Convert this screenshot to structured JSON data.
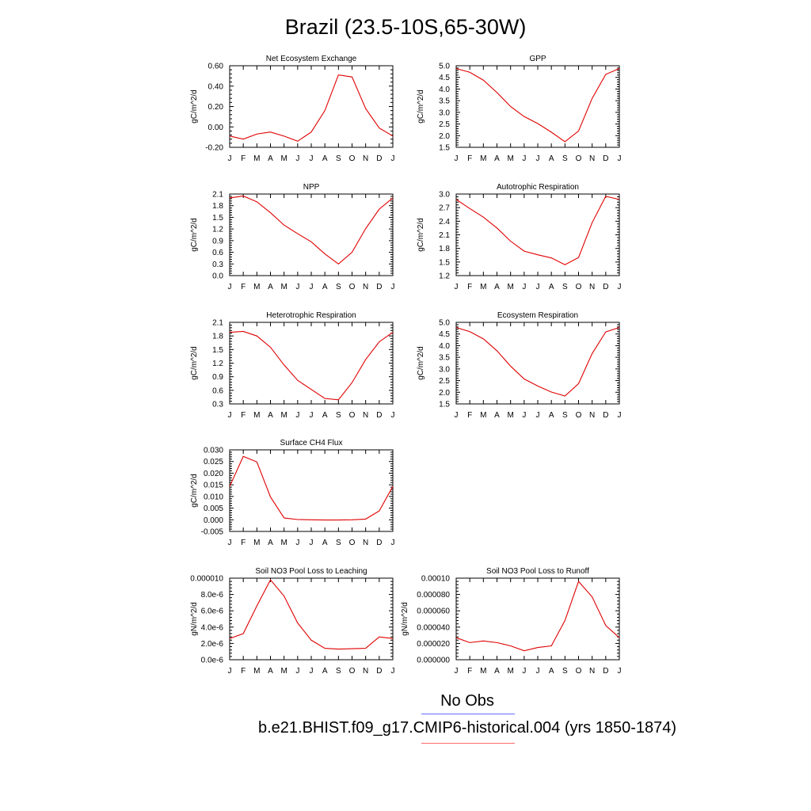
{
  "title": "Brazil (23.5-10S,65-30W)",
  "legend": {
    "obs_label": "No Obs",
    "obs_color": "#6a6aff",
    "model_label": "b.e21.BHIST.f09_g17.CMIP6-historical.004 (yrs 1850-1874)",
    "model_color": "#ff6a6a"
  },
  "colors": {
    "line": "#e00000",
    "axis": "#000000"
  },
  "chart_data": [
    {
      "type": "line",
      "title": "Net Ecosystem Exchange",
      "ylabel": "gC/m^2/d",
      "xticklabels": [
        "J",
        "F",
        "M",
        "A",
        "M",
        "J",
        "J",
        "A",
        "S",
        "O",
        "N",
        "D",
        "J"
      ],
      "ylim": [
        -0.2,
        0.6
      ],
      "yticks": [
        -0.2,
        0.0,
        0.2,
        0.4,
        0.6
      ],
      "yticklabels": [
        "-0.20",
        "0.00",
        "0.20",
        "0.40",
        "0.60"
      ],
      "series": [
        {
          "values": [
            -0.09,
            -0.12,
            -0.07,
            -0.05,
            -0.09,
            -0.14,
            -0.05,
            0.16,
            0.51,
            0.49,
            0.18,
            -0.01,
            -0.09
          ]
        }
      ]
    },
    {
      "type": "line",
      "title": "GPP",
      "ylabel": "gC/m^2/d",
      "xticklabels": [
        "J",
        "F",
        "M",
        "A",
        "M",
        "J",
        "J",
        "A",
        "S",
        "O",
        "N",
        "D",
        "J"
      ],
      "ylim": [
        1.5,
        5.0
      ],
      "yticks": [
        1.5,
        2.0,
        2.5,
        3.0,
        3.5,
        4.0,
        4.5,
        5.0
      ],
      "yticklabels": [
        "1.5",
        "2.0",
        "2.5",
        "3.0",
        "3.5",
        "4.0",
        "4.5",
        "5.0"
      ],
      "series": [
        {
          "values": [
            4.88,
            4.72,
            4.38,
            3.85,
            3.25,
            2.82,
            2.52,
            2.15,
            1.74,
            2.2,
            3.6,
            4.63,
            4.88
          ]
        }
      ]
    },
    {
      "type": "line",
      "title": "NPP",
      "ylabel": "gC/m^2/d",
      "xticklabels": [
        "J",
        "F",
        "M",
        "A",
        "M",
        "J",
        "J",
        "A",
        "S",
        "O",
        "N",
        "D",
        "J"
      ],
      "ylim": [
        0.0,
        2.1
      ],
      "yticks": [
        0.0,
        0.3,
        0.6,
        0.9,
        1.2,
        1.5,
        1.8,
        2.1
      ],
      "yticklabels": [
        "0.0",
        "0.3",
        "0.6",
        "0.9",
        "1.2",
        "1.5",
        "1.8",
        "2.1"
      ],
      "series": [
        {
          "values": [
            2.0,
            2.05,
            1.9,
            1.62,
            1.3,
            1.08,
            0.87,
            0.56,
            0.3,
            0.6,
            1.21,
            1.71,
            2.0
          ]
        }
      ]
    },
    {
      "type": "line",
      "title": "Autotrophic Respiration",
      "ylabel": "gC/m^2/d",
      "xticklabels": [
        "J",
        "F",
        "M",
        "A",
        "M",
        "J",
        "J",
        "A",
        "S",
        "O",
        "N",
        "D",
        "J"
      ],
      "ylim": [
        1.2,
        3.0
      ],
      "yticks": [
        1.2,
        1.5,
        1.8,
        2.1,
        2.4,
        2.7,
        3.0
      ],
      "yticklabels": [
        "1.2",
        "1.5",
        "1.8",
        "2.1",
        "2.4",
        "2.7",
        "3.0"
      ],
      "series": [
        {
          "values": [
            2.88,
            2.68,
            2.49,
            2.25,
            1.96,
            1.74,
            1.66,
            1.59,
            1.44,
            1.6,
            2.37,
            2.95,
            2.88
          ]
        }
      ]
    },
    {
      "type": "line",
      "title": "Heterotrophic Respiration",
      "ylabel": "gC/m^2/d",
      "xticklabels": [
        "J",
        "F",
        "M",
        "A",
        "M",
        "J",
        "J",
        "A",
        "S",
        "O",
        "N",
        "D",
        "J"
      ],
      "ylim": [
        0.3,
        2.1
      ],
      "yticks": [
        0.3,
        0.6,
        0.9,
        1.2,
        1.5,
        1.8,
        2.1
      ],
      "yticklabels": [
        "0.3",
        "0.6",
        "0.9",
        "1.2",
        "1.5",
        "1.8",
        "2.1"
      ],
      "series": [
        {
          "values": [
            1.88,
            1.9,
            1.8,
            1.55,
            1.16,
            0.82,
            0.62,
            0.42,
            0.39,
            0.77,
            1.28,
            1.67,
            1.88
          ]
        }
      ]
    },
    {
      "type": "line",
      "title": "Ecosystem Respiration",
      "ylabel": "gC/m^2/d",
      "xticklabels": [
        "J",
        "F",
        "M",
        "A",
        "M",
        "J",
        "J",
        "A",
        "S",
        "O",
        "N",
        "D",
        "J"
      ],
      "ylim": [
        1.5,
        5.0
      ],
      "yticks": [
        1.5,
        2.0,
        2.5,
        3.0,
        3.5,
        4.0,
        4.5,
        5.0
      ],
      "yticklabels": [
        "1.5",
        "2.0",
        "2.5",
        "3.0",
        "3.5",
        "4.0",
        "4.5",
        "5.0"
      ],
      "series": [
        {
          "values": [
            4.78,
            4.6,
            4.29,
            3.78,
            3.12,
            2.57,
            2.27,
            2.01,
            1.84,
            2.37,
            3.66,
            4.59,
            4.78
          ]
        }
      ]
    },
    {
      "type": "line",
      "title": "Surface CH4 Flux",
      "ylabel": "gC/m^2/d",
      "xticklabels": [
        "J",
        "F",
        "M",
        "A",
        "M",
        "J",
        "J",
        "A",
        "S",
        "O",
        "N",
        "D",
        "J"
      ],
      "ylim": [
        -0.005,
        0.03
      ],
      "yticks": [
        -0.005,
        0.0,
        0.005,
        0.01,
        0.015,
        0.02,
        0.025,
        0.03
      ],
      "yticklabels": [
        "-0.005",
        "0.000",
        "0.005",
        "0.010",
        "0.015",
        "0.020",
        "0.025",
        "0.030"
      ],
      "series": [
        {
          "values": [
            0.0143,
            0.0272,
            0.0248,
            0.0098,
            0.0008,
            0.0001,
            0.0,
            -0.0001,
            -0.0001,
            0.0,
            0.0003,
            0.0038,
            0.0143
          ]
        }
      ]
    },
    {
      "type": "line",
      "title": "Soil NO3 Pool Loss to Leaching",
      "ylabel": "gN/m^2/d",
      "xticklabels": [
        "J",
        "F",
        "M",
        "A",
        "M",
        "J",
        "J",
        "A",
        "S",
        "O",
        "N",
        "D",
        "J"
      ],
      "ylim": [
        0.0,
        1e-05
      ],
      "yticks": [
        0.0,
        2e-06,
        4e-06,
        6e-06,
        8e-06,
        1e-05
      ],
      "yticklabels": [
        "0.0e-6",
        "2.0e-6",
        "4.0e-6",
        "6.0e-6",
        "8.0e-6",
        "0.000010"
      ],
      "series": [
        {
          "values": [
            2.6e-06,
            3.2e-06,
            6.6e-06,
            9.8e-06,
            7.8e-06,
            4.5e-06,
            2.4e-06,
            1.4e-06,
            1.3e-06,
            1.35e-06,
            1.4e-06,
            2.8e-06,
            2.6e-06
          ]
        }
      ]
    },
    {
      "type": "line",
      "title": "Soil NO3 Pool Loss to Runoff",
      "ylabel": "gN/m^2/d",
      "xticklabels": [
        "J",
        "F",
        "M",
        "A",
        "M",
        "J",
        "J",
        "A",
        "S",
        "O",
        "N",
        "D",
        "J"
      ],
      "ylim": [
        0.0,
        0.0001
      ],
      "yticks": [
        0.0,
        2e-05,
        4e-05,
        6e-05,
        8e-05,
        0.0001
      ],
      "yticklabels": [
        "0.000000",
        "0.000020",
        "0.000040",
        "0.000060",
        "0.000080",
        "0.00010"
      ],
      "series": [
        {
          "values": [
            2.7e-05,
            2.1e-05,
            2.3e-05,
            2.1e-05,
            1.7e-05,
            1.1e-05,
            1.5e-05,
            1.7e-05,
            4.8e-05,
            9.6e-05,
            7.7e-05,
            4.2e-05,
            2.7e-05
          ]
        }
      ]
    }
  ]
}
